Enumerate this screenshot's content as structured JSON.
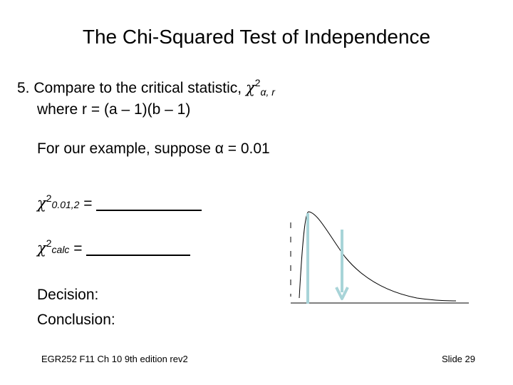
{
  "slide": {
    "title": "The Chi-Squared Test of Independence",
    "step": {
      "prefix": "5. Compare to the critical statistic, ",
      "chi": "χ",
      "exp": "2",
      "sub": "α, r",
      "line2": "where r = (a – 1)(b – 1)"
    },
    "example": "For our example, suppose α = 0.01",
    "critical": {
      "chi": "χ",
      "exp": "2",
      "sub": "0.01,2",
      "eq": " = "
    },
    "calc": {
      "chi": "χ",
      "exp": "2",
      "sub": "calc",
      "eq": " = "
    },
    "decision": "Decision:",
    "conclusion": "Conclusion:",
    "footer": {
      "left": "EGR252 F11 Ch 10   9th edition rev2",
      "right": "Slide 29"
    }
  },
  "colors": {
    "marker": "#a8d4d8",
    "curve": "#000000"
  }
}
